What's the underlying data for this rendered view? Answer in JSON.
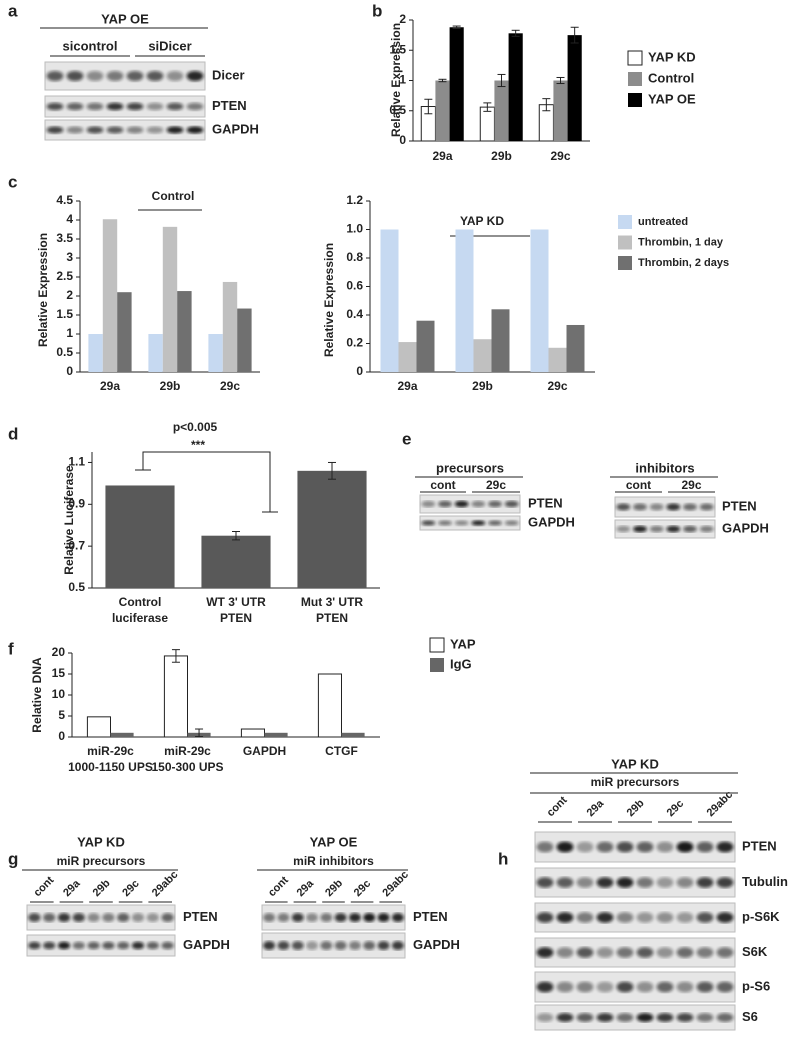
{
  "panel_labels": [
    "a",
    "b",
    "c",
    "d",
    "e",
    "f",
    "g",
    "h"
  ],
  "chart_data": [
    {
      "type": "bar",
      "ylabel": "Relative Expression",
      "categories": [
        "29a",
        "29b",
        "29c"
      ],
      "series": [
        {
          "name": "YAP KD",
          "color": "#ffffff",
          "values": [
            0.57,
            0.56,
            0.6
          ],
          "errors": [
            0.12,
            0.07,
            0.1
          ]
        },
        {
          "name": "Control",
          "color": "#8c8c8c",
          "values": [
            1,
            1,
            1
          ],
          "errors": [
            0.02,
            0.1,
            0.05
          ]
        },
        {
          "name": "YAP OE",
          "color": "#000000",
          "values": [
            1.88,
            1.78,
            1.75
          ],
          "errors": [
            0.02,
            0.05,
            0.13
          ]
        }
      ],
      "ylim": [
        0,
        2
      ],
      "yticks": [
        0,
        0.5,
        1,
        1.5,
        2
      ]
    },
    {
      "type": "bar",
      "title": "Control",
      "ylabel": "Relative Expression",
      "categories": [
        "29a",
        "29b",
        "29c"
      ],
      "series": [
        {
          "name": "untreated",
          "color": "#c6d9f1",
          "values": [
            1,
            1,
            1
          ]
        },
        {
          "name": "Thrombin, 1 day",
          "color": "#c0c0c0",
          "values": [
            4.02,
            3.82,
            2.37
          ]
        },
        {
          "name": "Thrombin, 2 days",
          "color": "#707070",
          "values": [
            2.1,
            2.13,
            1.67
          ]
        }
      ],
      "ylim": [
        0,
        4.5
      ],
      "yticks": [
        0,
        0.5,
        1,
        1.5,
        2,
        2.5,
        3,
        3.5,
        4,
        4.5
      ]
    },
    {
      "type": "bar",
      "title": "YAP KD",
      "ylabel": "Relative Expression",
      "categories": [
        "29a",
        "29b",
        "29c"
      ],
      "series": [
        {
          "name": "untreated",
          "color": "#c6d9f1",
          "values": [
            1,
            1,
            1
          ]
        },
        {
          "name": "Thrombin, 1 day",
          "color": "#c0c0c0",
          "values": [
            0.21,
            0.23,
            0.17
          ]
        },
        {
          "name": "Thrombin, 2 days",
          "color": "#707070",
          "values": [
            0.36,
            0.44,
            0.33
          ]
        }
      ],
      "ylim": [
        0,
        1.2
      ],
      "yticks": [
        0,
        0.2,
        0.4,
        0.6,
        0.8,
        {
          "value": 1,
          "label": "1.0"
        },
        1.2
      ]
    },
    {
      "type": "bar",
      "ylabel": "Relative Luciferase",
      "annotations": [
        "p<0.005",
        "***"
      ],
      "categories": [
        [
          "Control",
          "luciferase"
        ],
        [
          "WT 3' UTR",
          "PTEN"
        ],
        [
          "Mut 3' UTR",
          "PTEN"
        ]
      ],
      "color": "#595959",
      "values": [
        0.99,
        0.75,
        1.06
      ],
      "errors": [
        null,
        0.02,
        0.04
      ],
      "ylim": [
        0.5,
        1.15
      ],
      "yticks": [
        0.5,
        0.7,
        0.9,
        1.1
      ]
    },
    {
      "type": "bar",
      "ylabel": "Relative DNA",
      "categories": [
        [
          "miR-29c",
          "1000-1150 UPS"
        ],
        [
          "miR-29c",
          "150-300 UPS"
        ],
        [
          "GAPDH"
        ],
        [
          "CTGF"
        ]
      ],
      "series": [
        {
          "name": "YAP",
          "color": "#ffffff",
          "values": [
            4.8,
            19.3,
            1.9,
            15
          ],
          "errors": [
            null,
            1.5,
            null,
            null
          ]
        },
        {
          "name": "IgG",
          "color": "#666666",
          "values": [
            1,
            1,
            1,
            1
          ],
          "errors": [
            null,
            0.9,
            null,
            null
          ]
        }
      ],
      "ylim": [
        0,
        20
      ],
      "yticks": [
        0,
        5,
        10,
        15,
        20
      ]
    }
  ],
  "blots": [
    {
      "header": "YAP OE",
      "groups": [
        "sicontrol",
        "siDicer"
      ],
      "rows": [
        "Dicer",
        "PTEN",
        "GAPDH"
      ]
    },
    {
      "header": "precursors",
      "groups": [
        "cont",
        "29c"
      ],
      "rows": [
        "PTEN",
        "GAPDH"
      ]
    },
    {
      "header": "inhibitors",
      "groups": [
        "cont",
        "29c"
      ],
      "rows": [
        "PTEN",
        "GAPDH"
      ]
    },
    {
      "header": "YAP KD",
      "subheader": "miR precursors",
      "lanes": [
        "cont",
        "29a",
        "29b",
        "29c",
        "29abc"
      ],
      "rows": [
        "PTEN",
        "GAPDH"
      ]
    },
    {
      "header": "YAP OE",
      "subheader": "miR inhibitors",
      "lanes": [
        "cont",
        "29a",
        "29b",
        "29c",
        "29abc"
      ],
      "rows": [
        "PTEN",
        "GAPDH"
      ]
    },
    {
      "header": "YAP KD",
      "subheader": "miR precursors",
      "lanes": [
        "cont",
        "29a",
        "29b",
        "29c",
        "29abc"
      ],
      "rows": [
        "PTEN",
        "Tubulin",
        "p-S6K",
        "S6K",
        "p-S6",
        "S6"
      ]
    }
  ]
}
